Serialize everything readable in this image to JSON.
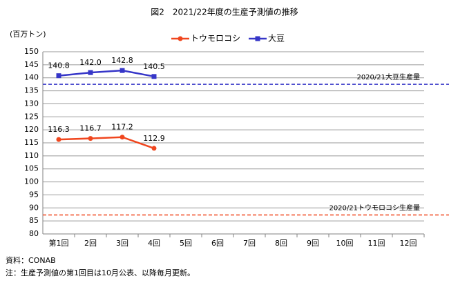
{
  "chart_data": {
    "type": "line",
    "title": "図2　2021/22年度の生産予測値の推移",
    "y_label": "(百万トン)",
    "categories": [
      "第1回",
      "2回",
      "3回",
      "4回",
      "5回",
      "6回",
      "7回",
      "8回",
      "9回",
      "10回",
      "11回",
      "12回"
    ],
    "series": [
      {
        "name": "トウモロコシ",
        "color": "#f0461e",
        "marker": "circle",
        "values": [
          116.3,
          116.7,
          117.2,
          112.9,
          null,
          null,
          null,
          null,
          null,
          null,
          null,
          null
        ],
        "value_labels": [
          "116.3",
          "116.7",
          "117.2",
          "112.9",
          null,
          null,
          null,
          null,
          null,
          null,
          null,
          null
        ]
      },
      {
        "name": "大豆",
        "color": "#3636c8",
        "marker": "square",
        "values": [
          140.8,
          142.0,
          142.8,
          140.5,
          null,
          null,
          null,
          null,
          null,
          null,
          null,
          null
        ],
        "value_labels": [
          "140.8",
          "142.0",
          "142.8",
          "140.5",
          null,
          null,
          null,
          null,
          null,
          null,
          null,
          null
        ]
      }
    ],
    "reference_lines": [
      {
        "label": "2020/21大豆生産量",
        "value": 137.5,
        "color": "#3636c8"
      },
      {
        "label": "2020/21トウモロコシ生産量",
        "value": 87.3,
        "color": "#f0461e"
      }
    ],
    "ylim": [
      80,
      150
    ],
    "yticks": [
      80,
      85,
      90,
      95,
      100,
      105,
      110,
      115,
      120,
      125,
      130,
      135,
      140,
      145,
      150
    ],
    "grid": true,
    "notes": [
      "資料：CONAB",
      "注：生産予測値の第1回目は10月公表、以降毎月更新。"
    ]
  }
}
